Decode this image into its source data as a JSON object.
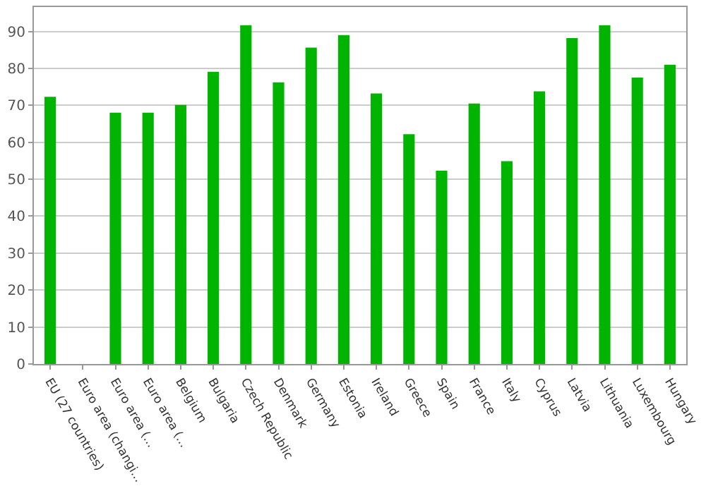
{
  "chart_data": {
    "type": "bar",
    "categories": [
      "EU (27 countries)",
      "Euro area (changi...",
      "Euro area (...",
      "Euro area (...",
      "Belgium",
      "Bulgaria",
      "Czech Republic",
      "Denmark",
      "Germany",
      "Estonia",
      "Ireland",
      "Greece",
      "Spain",
      "France",
      "Italy",
      "Cyprus",
      "Latvia",
      "Lithuania",
      "Luxembourg",
      "Hungary"
    ],
    "values": [
      72.3,
      null,
      68,
      68,
      70.1,
      79.1,
      91.7,
      76.2,
      85.6,
      89,
      73.2,
      62.2,
      52.3,
      70.5,
      54.9,
      73.8,
      88.2,
      91.7,
      77.5,
      81
    ],
    "color": "#00b400",
    "ylim": [
      0,
      96.6
    ],
    "yticks": [
      0,
      10,
      20,
      30,
      40,
      50,
      60,
      70,
      80,
      90
    ],
    "grid": "y"
  }
}
